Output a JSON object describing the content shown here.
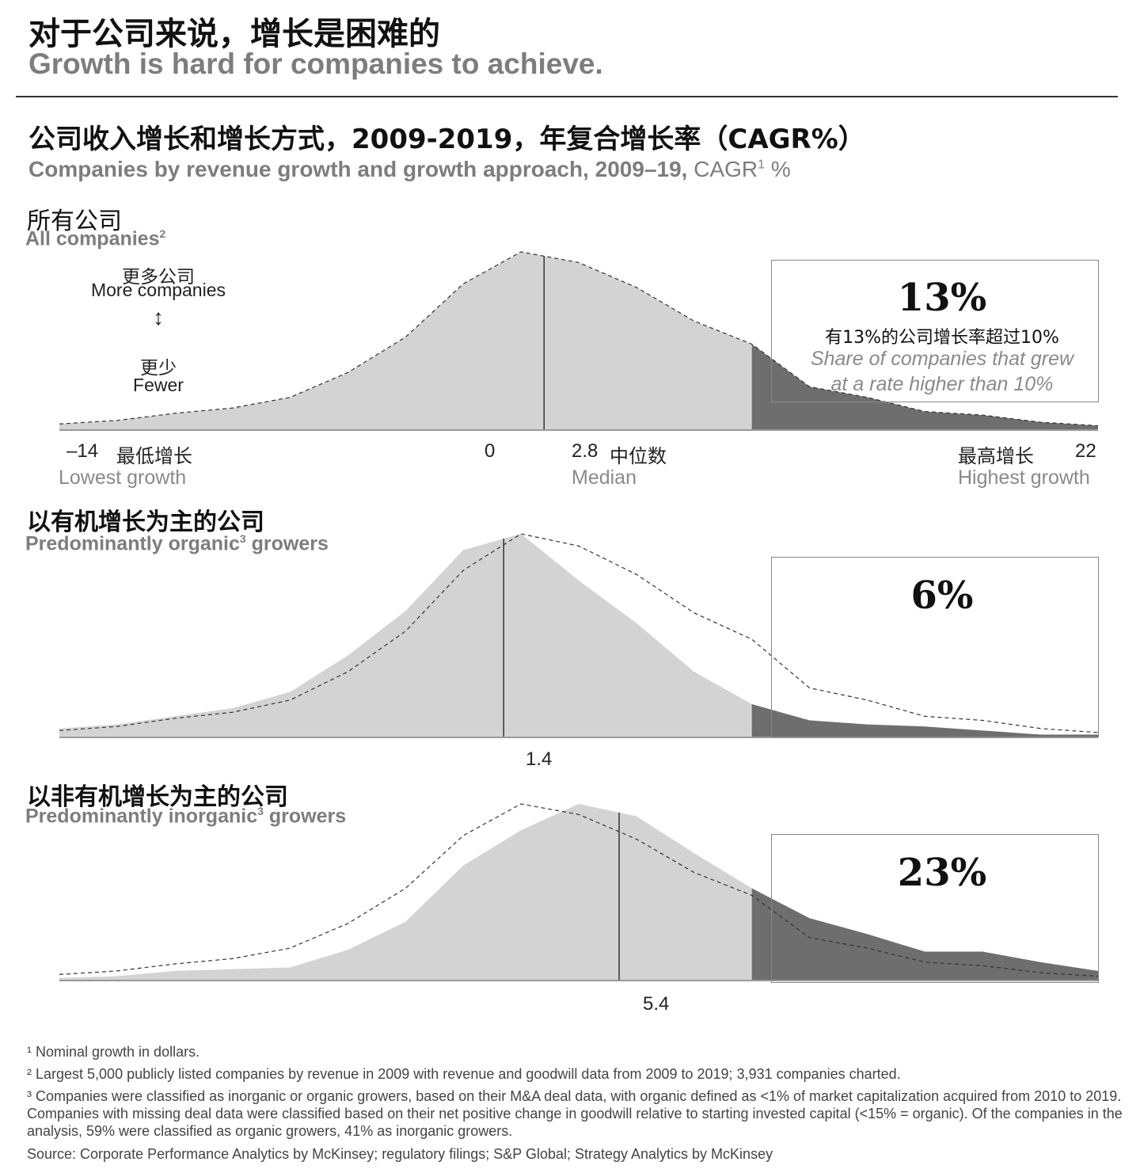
{
  "header": {
    "title_zh": "对于公司来说，增长是困难的",
    "title_en": "Growth is hard for companies to achieve."
  },
  "subtitle": {
    "zh": "公司收入增长和增长方式，2009-2019，年复合增长率（CAGR%）",
    "en_bold": "Companies by revenue growth and growth approach, 2009–19,",
    "en_light": "CAGR",
    "en_sup": "1",
    "en_unit": " %"
  },
  "legend": {
    "more_zh": "更多公司",
    "more_en": "More companies",
    "arrow": "↕",
    "fewer_zh": "更少",
    "fewer_en": "Fewer"
  },
  "axis": {
    "min_label": "–14",
    "lowest_zh": "最低增长",
    "lowest_en": "Lowest growth",
    "zero_label": "0",
    "median_value": "2.8",
    "median_zh": "中位数",
    "median_en": "Median",
    "highest_zh": "最高增长",
    "highest_en": "Highest growth",
    "max_label": "22"
  },
  "panels": [
    {
      "title_zh": "所有公司",
      "title_en": "All companies",
      "title_sup": "2",
      "share_pct": "13%",
      "share_zh": "有13%的公司增长率超过10%",
      "share_en_line1": "Share of companies that grew",
      "share_en_line2": "at a rate higher than 10%"
    },
    {
      "title_zh": "以有机增长为主的公司",
      "title_en": "Predominantly organic",
      "title_sup": "3",
      "title_en_tail": " growers",
      "share_pct": "6%",
      "median_label": "1.4"
    },
    {
      "title_zh": "以非有机增长为主的公司",
      "title_en": "Predominantly inorganic",
      "title_sup": "3",
      "title_en_tail": " growers",
      "share_pct": "23%",
      "median_label": "5.4"
    }
  ],
  "footnotes": {
    "f1": "¹ Nominal growth in dollars.",
    "f2": "² Largest 5,000 publicly listed companies by revenue in 2009 with revenue and goodwill data from 2009 to 2019; 3,931 companies charted.",
    "f3": "³ Companies were classified as inorganic or organic growers, based on their M&A deal data, with organic defined as <1% of market capitalization acquired from 2010 to 2019. Companies with missing deal data were classified based on their net positive change in goodwill relative to starting invested capital (<15% = organic). Of the companies in the analysis, 59% were classified as organic growers, 41% as inorganic growers.",
    "source": "Source: Corporate Performance Analytics by McKinsey; regulatory filings; S&P Global; Strategy Analytics by McKinsey"
  },
  "colors": {
    "area_light": "#d3d3d3",
    "area_dark": "#6e6e6e",
    "dashed": "#333333",
    "baseline": "#999999"
  },
  "chart_data": [
    {
      "type": "area",
      "title": "All companies",
      "x": [
        -14,
        -12,
        -10,
        -8,
        -6,
        -4,
        -2,
        0,
        2,
        4,
        6,
        8,
        10,
        12,
        14,
        16,
        18,
        20,
        22
      ],
      "series": [
        {
          "values": [
            3,
            5,
            9,
            12,
            18,
            32,
            52,
            82,
            100,
            94,
            80,
            61,
            48,
            24,
            18,
            10,
            8,
            4,
            2
          ]
        }
      ],
      "xlim": [
        -14,
        22
      ],
      "ylim": [
        0,
        100
      ],
      "median": 2.8,
      "shade_above": 10,
      "share_above": 13
    },
    {
      "type": "area",
      "title": "Predominantly organic growers",
      "x": [
        -14,
        -12,
        -10,
        -8,
        -6,
        -4,
        -2,
        0,
        2,
        4,
        6,
        8,
        10,
        12,
        14,
        16,
        18,
        20,
        22
      ],
      "series": [
        {
          "values": [
            4,
            6,
            10,
            14,
            22,
            40,
            62,
            92,
            100,
            77,
            56,
            32,
            16,
            8,
            6,
            5,
            3,
            1,
            1
          ]
        }
      ],
      "reference_all_companies": [
        3,
        5,
        9,
        12,
        18,
        32,
        52,
        82,
        100,
        94,
        80,
        61,
        48,
        24,
        18,
        10,
        8,
        4,
        2
      ],
      "xlim": [
        -14,
        22
      ],
      "ylim": [
        0,
        100
      ],
      "median": 1.4,
      "shade_above": 10,
      "share_above": 6
    },
    {
      "type": "area",
      "title": "Predominantly inorganic growers",
      "x": [
        -14,
        -12,
        -10,
        -8,
        -6,
        -4,
        -2,
        0,
        2,
        4,
        6,
        8,
        10,
        12,
        14,
        16,
        18,
        20,
        22
      ],
      "series": [
        {
          "values": [
            1,
            2,
            5,
            6,
            7,
            17,
            33,
            65,
            85,
            100,
            93,
            72,
            52,
            35,
            26,
            16,
            16,
            10,
            5
          ]
        }
      ],
      "reference_all_companies": [
        3,
        5,
        9,
        12,
        18,
        32,
        52,
        82,
        100,
        94,
        80,
        61,
        48,
        24,
        18,
        10,
        8,
        4,
        2
      ],
      "xlim": [
        -14,
        22
      ],
      "ylim": [
        0,
        100
      ],
      "median": 5.4,
      "shade_above": 10,
      "share_above": 23
    }
  ]
}
